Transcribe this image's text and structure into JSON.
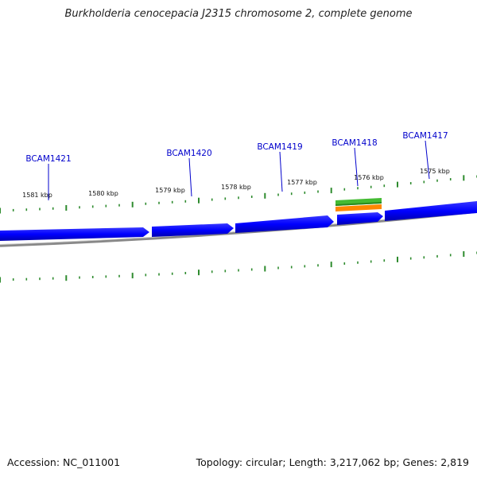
{
  "title": "Burkholderia cenocepacia J2315 chromosome 2, complete genome",
  "footer": {
    "accession": "Accession: NC_011001",
    "summary": "Topology: circular; Length: 3,217,062 bp; Genes: 2,819"
  },
  "colors": {
    "cds": "#0000ff",
    "cds_edge": "#0000aa",
    "backbone": "#888888",
    "gc_skew": "#2e8b2e",
    "gene_label": "#0000cc",
    "feature_green": "#44bb33",
    "feature_orange": "#ff8800"
  },
  "gene_labels": [
    {
      "name": "BCAM1421"
    },
    {
      "name": "BCAM1420"
    },
    {
      "name": "BCAM1419"
    },
    {
      "name": "BCAM1418"
    },
    {
      "name": "BCAM1417"
    }
  ],
  "scale_labels": [
    "1581 kbp",
    "1580 kbp",
    "1579 kbp",
    "1578 kbp",
    "1577 kbp",
    "1576 kbp",
    "1575 kbp"
  ]
}
